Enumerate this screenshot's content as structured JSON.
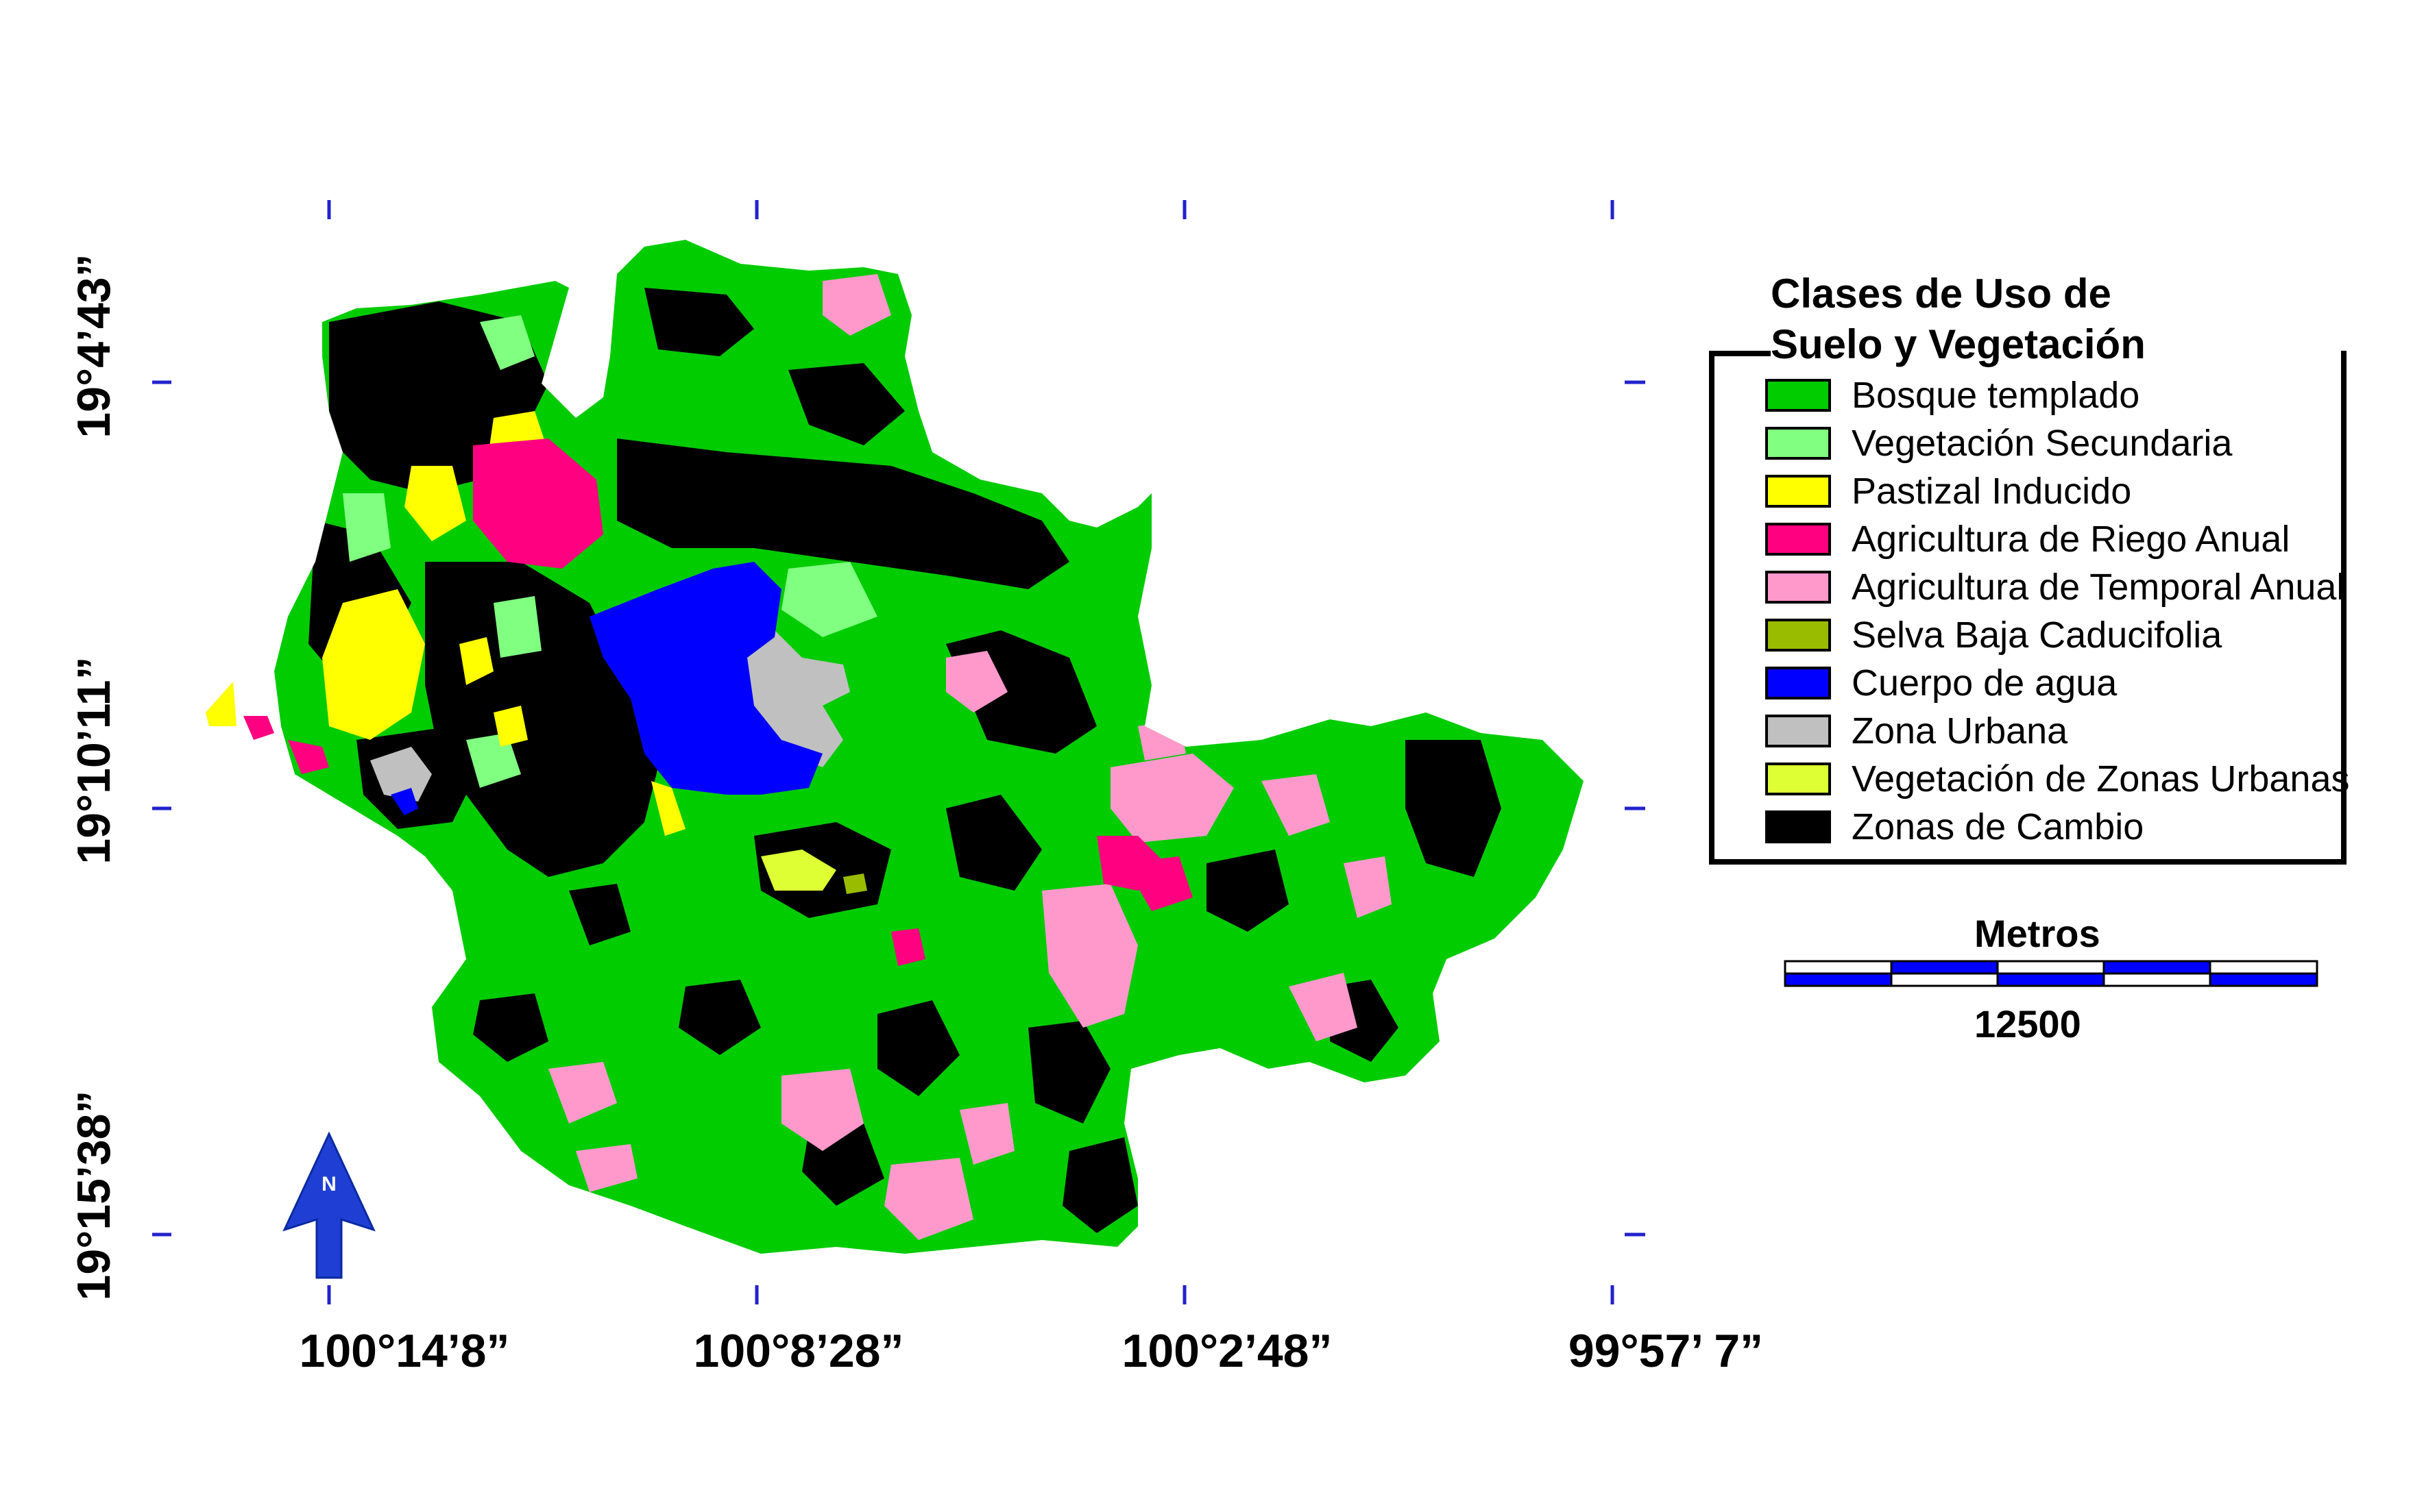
{
  "map": {
    "lon_labels": [
      "100°14’8”",
      "100°8’28”",
      "100°2’48”",
      "99°57’ 7”"
    ],
    "lat_labels": [
      "19°4’43”",
      "19°10’11”",
      "19°15’38”"
    ],
    "north_label": "N",
    "legend": {
      "title_line1": "Clases de Uso de",
      "title_line2": "Suelo y Vegetación",
      "items": [
        {
          "label": "Bosque templado",
          "color": "#00cc00"
        },
        {
          "label": "Vegetación Secundaria",
          "color": "#80ff80"
        },
        {
          "label": "Pastizal Inducido",
          "color": "#ffff00"
        },
        {
          "label": "Agricultura de Riego Anual",
          "color": "#ff0080"
        },
        {
          "label": "Agricultura de Temporal Anual",
          "color": "#ff99cc"
        },
        {
          "label": "Selva Baja Caducifolia",
          "color": "#99bb00"
        },
        {
          "label": "Cuerpo de agua",
          "color": "#0000ff"
        },
        {
          "label": "Zona Urbana",
          "color": "#c0c0c0"
        },
        {
          "label": "Vegetación de Zonas Urbanas",
          "color": "#ddff33"
        },
        {
          "label": "Zonas de Cambio",
          "color": "#000000"
        }
      ]
    },
    "scale_bar": {
      "title": "Metros",
      "value": "12500",
      "colors": [
        "#0000ff",
        "#ffffff"
      ]
    }
  }
}
